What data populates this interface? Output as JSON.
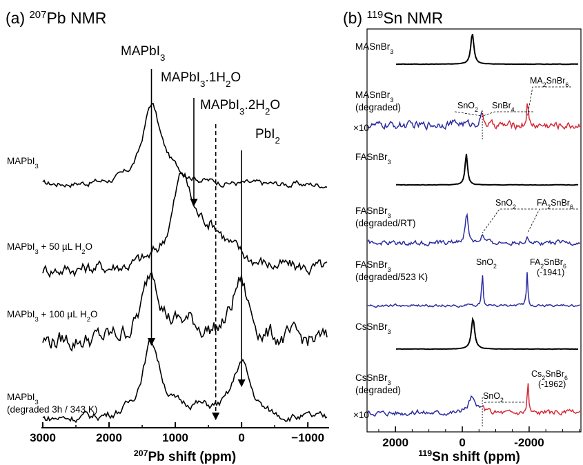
{
  "chart_data": [
    {
      "type": "line",
      "panel": "a",
      "title_prefix": "(a) ",
      "title_sup": "207",
      "title_main": "Pb NMR",
      "xlabel_sup": "207",
      "xlabel_main": "Pb shift (ppm)",
      "xlim": [
        3000,
        -1300
      ],
      "x_reversed": true,
      "xticks": [
        "3000",
        "2000",
        "1000",
        "0",
        "−1000"
      ],
      "xtick_values": [
        3000,
        2000,
        1000,
        0,
        -1000
      ],
      "series": [
        {
          "label": "MAPbI",
          "sub": "3",
          "tail": "",
          "line2": "",
          "color": "#000000",
          "peaks": [
            {
              "center": 1360,
              "width": 160,
              "amp": 1.0
            },
            {
              "center": 1100,
              "width": 300,
              "amp": 0.12
            }
          ],
          "noise": 0.03
        },
        {
          "label": "MAPbI",
          "sub": "3",
          "tail": " + 50 µL H",
          "tail_sub": "2",
          "tail_end": "O",
          "line2": "",
          "color": "#000000",
          "peaks": [
            {
              "center": 900,
              "width": 180,
              "amp": 1.0
            },
            {
              "center": 450,
              "width": 350,
              "amp": 0.45
            }
          ],
          "noise": 0.06
        },
        {
          "label": "MAPbI",
          "sub": "3",
          "tail": " + 100 µL H",
          "tail_sub": "2",
          "tail_end": "O",
          "line2": "",
          "color": "#000000",
          "peaks": [
            {
              "center": 1350,
              "width": 160,
              "amp": 1.0
            },
            {
              "center": 20,
              "width": 150,
              "amp": 0.85
            },
            {
              "center": 800,
              "width": 250,
              "amp": 0.2
            }
          ],
          "noise": 0.1
        },
        {
          "label": "MAPbI",
          "sub": "3",
          "tail": "",
          "line2": "(degraded 3h / 343 K)",
          "color": "#000000",
          "peaks": [
            {
              "center": 1360,
              "width": 170,
              "amp": 1.0
            },
            {
              "center": 0,
              "width": 160,
              "amp": 0.73
            },
            {
              "center": 700,
              "width": 300,
              "amp": 0.12
            }
          ],
          "noise": 0.04
        }
      ],
      "annotations": [
        {
          "text": "MAPbI",
          "sub": "3",
          "tail": "",
          "x": 1360,
          "style": "solid"
        },
        {
          "text": "MAPbI",
          "sub": "3",
          "tail": ".1H",
          "tail_sub": "2",
          "tail_end": "O",
          "x": 720,
          "style": "solid"
        },
        {
          "text": "MAPbI",
          "sub": "3",
          "tail": ".2H",
          "tail_sub": "2",
          "tail_end": "O",
          "x": 390,
          "style": "dashed"
        },
        {
          "text": "PbI",
          "sub": "2",
          "tail": "",
          "x": 0,
          "style": "solid"
        }
      ]
    },
    {
      "type": "line",
      "panel": "b",
      "title_prefix": "(b) ",
      "title_sup": "119",
      "title_main": "Sn NMR",
      "xlabel_sup": "119",
      "xlabel_main": "Sn shift (ppm)",
      "xlim": [
        2850,
        -3550
      ],
      "x_reversed": true,
      "xticks": [
        "2000",
        "0",
        "-2000"
      ],
      "xtick_values": [
        2000,
        0,
        -2000
      ],
      "colors": {
        "pristine": "#000000",
        "degraded_low": "#2b2ba0",
        "degraded_high": "#d42a35"
      },
      "series": [
        {
          "label": "MASnBr",
          "sub": "3",
          "line2": "",
          "scale": "",
          "peaks": [
            {
              "center": -300,
              "width": 55,
              "amp": 1.0
            }
          ]
        },
        {
          "label": "MASnBr",
          "sub": "3",
          "line2": "(degraded)",
          "scale": "×10",
          "split_at": -600,
          "peaks": [
            {
              "center": -580,
              "width": 60,
              "amp": 0.35
            },
            {
              "center": -1950,
              "width": 22,
              "amp": 1.0
            },
            {
              "center": 200,
              "width": 500,
              "amp": 0.08
            }
          ]
        },
        {
          "label": "FASnBr",
          "sub": "3",
          "line2": "",
          "scale": "",
          "peaks": [
            {
              "center": -120,
              "width": 45,
              "amp": 1.0
            }
          ]
        },
        {
          "label": "FASnBr",
          "sub": "3",
          "line2": "(degraded/RT)",
          "scale": "",
          "peaks": [
            {
              "center": -130,
              "width": 55,
              "amp": 0.9
            },
            {
              "center": -600,
              "width": 60,
              "amp": 0.22
            },
            {
              "center": -1950,
              "width": 50,
              "amp": 0.22
            }
          ]
        },
        {
          "label": "FASnBr",
          "sub": "3",
          "line2": "(degraded/523 K)",
          "scale": "",
          "peaks": [
            {
              "center": -600,
              "width": 25,
              "amp": 0.95
            },
            {
              "center": -1941,
              "width": 25,
              "amp": 1.0
            }
          ]
        },
        {
          "label": "CsSnBr",
          "sub": "3",
          "line2": "",
          "scale": "",
          "peaks": [
            {
              "center": -320,
              "width": 60,
              "amp": 1.0
            }
          ]
        },
        {
          "label": "CsSnBr",
          "sub": "3",
          "line2": "(degraded)",
          "scale": "×10",
          "split_at": -600,
          "peaks": [
            {
              "center": -280,
              "width": 110,
              "amp": 0.45
            },
            {
              "center": -620,
              "width": 50,
              "amp": 0.15
            },
            {
              "center": -1962,
              "width": 22,
              "amp": 1.0
            }
          ]
        }
      ],
      "annotations": [
        {
          "series": 1,
          "text": "SnO",
          "sub": "2",
          "x": -580,
          "side": "left"
        },
        {
          "series": 1,
          "text": "SnBr",
          "sub": "4",
          "x": -620,
          "side": "right"
        },
        {
          "series": 1,
          "text": "MA",
          "sub": "2",
          "tail": "SnBr",
          "tail_sub": "6",
          "x": -1950,
          "side": "right"
        },
        {
          "series": 3,
          "text": "SnO",
          "sub": "2",
          "x": -600,
          "side": "right"
        },
        {
          "series": 3,
          "text": "FA",
          "sub": "2",
          "tail": "SnBr",
          "tail_sub": "6",
          "x": -1950,
          "side": "right"
        },
        {
          "series": 4,
          "text": "SnO",
          "sub": "2",
          "x": -600,
          "side": "above"
        },
        {
          "series": 4,
          "text": "FA",
          "sub": "2",
          "tail": "SnBr",
          "tail_sub": "6",
          "extra": "(-1941)",
          "x": -1941,
          "side": "above"
        },
        {
          "series": 6,
          "text": "SnO",
          "sub": "2",
          "x": -620,
          "side": "right"
        },
        {
          "series": 6,
          "text": "Cs",
          "sub": "2",
          "tail": "SnBr",
          "tail_sub": "6",
          "extra": "(-1962)",
          "x": -1962,
          "side": "above"
        }
      ]
    }
  ]
}
